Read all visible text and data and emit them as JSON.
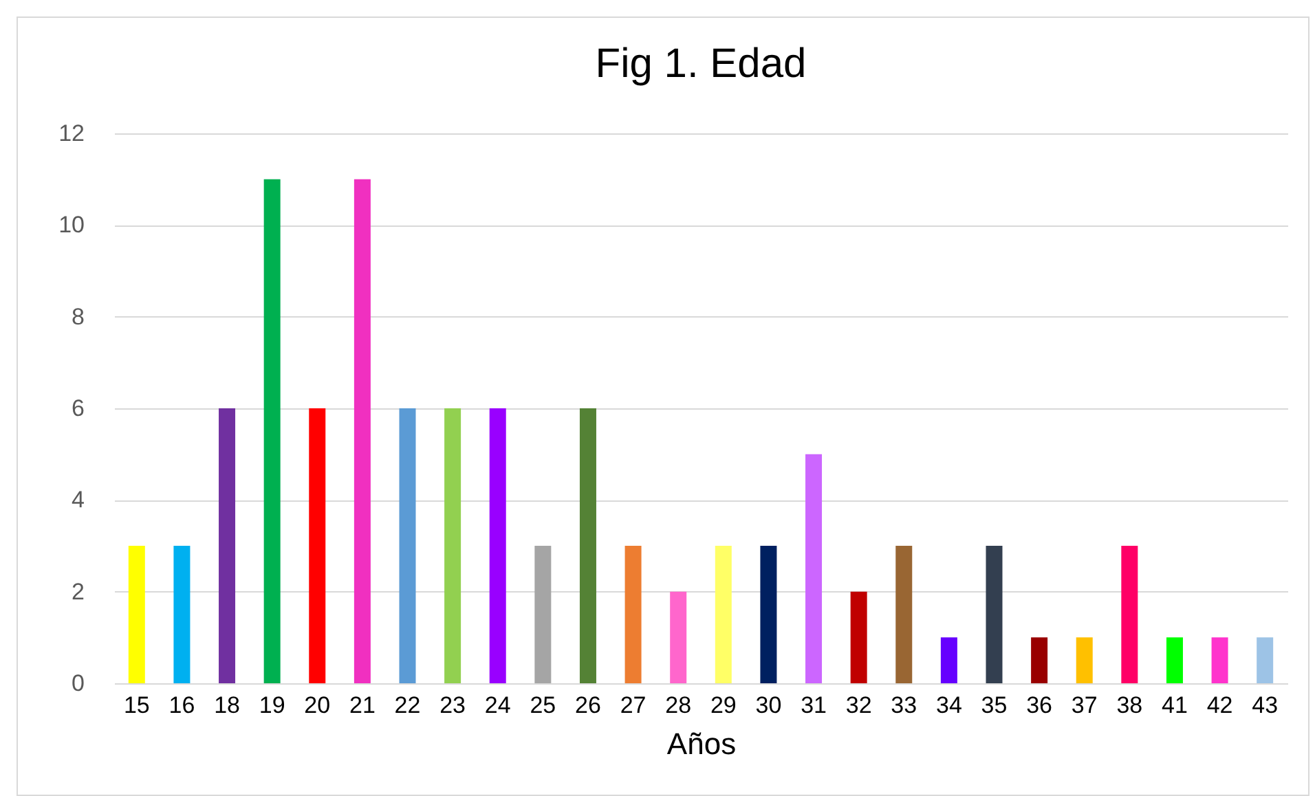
{
  "chart_data": {
    "type": "bar",
    "title": "Fig 1. Edad",
    "xlabel": "Años",
    "categories": [
      "15",
      "16",
      "18",
      "19",
      "20",
      "21",
      "22",
      "23",
      "24",
      "25",
      "26",
      "27",
      "28",
      "29",
      "30",
      "31",
      "32",
      "33",
      "34",
      "35",
      "36",
      "37",
      "38",
      "41",
      "42",
      "43"
    ],
    "values": [
      3,
      3,
      6,
      11,
      6,
      11,
      6,
      6,
      6,
      3,
      6,
      3,
      2,
      3,
      3,
      5,
      2,
      3,
      1,
      3,
      1,
      1,
      3,
      1,
      1,
      1
    ],
    "colors": [
      "#ffff00",
      "#00b0f0",
      "#7030a0",
      "#00b050",
      "#ff0000",
      "#f030c0",
      "#5b9bd5",
      "#92d050",
      "#9900ff",
      "#a5a5a5",
      "#548235",
      "#ed7d31",
      "#ff66cc",
      "#ffff66",
      "#002060",
      "#cc66ff",
      "#c00000",
      "#996633",
      "#6600ff",
      "#333f50",
      "#990000",
      "#ffc000",
      "#ff0066",
      "#00ff00",
      "#ff33cc",
      "#9dc3e6"
    ],
    "ylim": [
      0,
      12
    ],
    "yticks": [
      0,
      2,
      4,
      6,
      8,
      10,
      12
    ],
    "grid": "y",
    "legend": false
  }
}
